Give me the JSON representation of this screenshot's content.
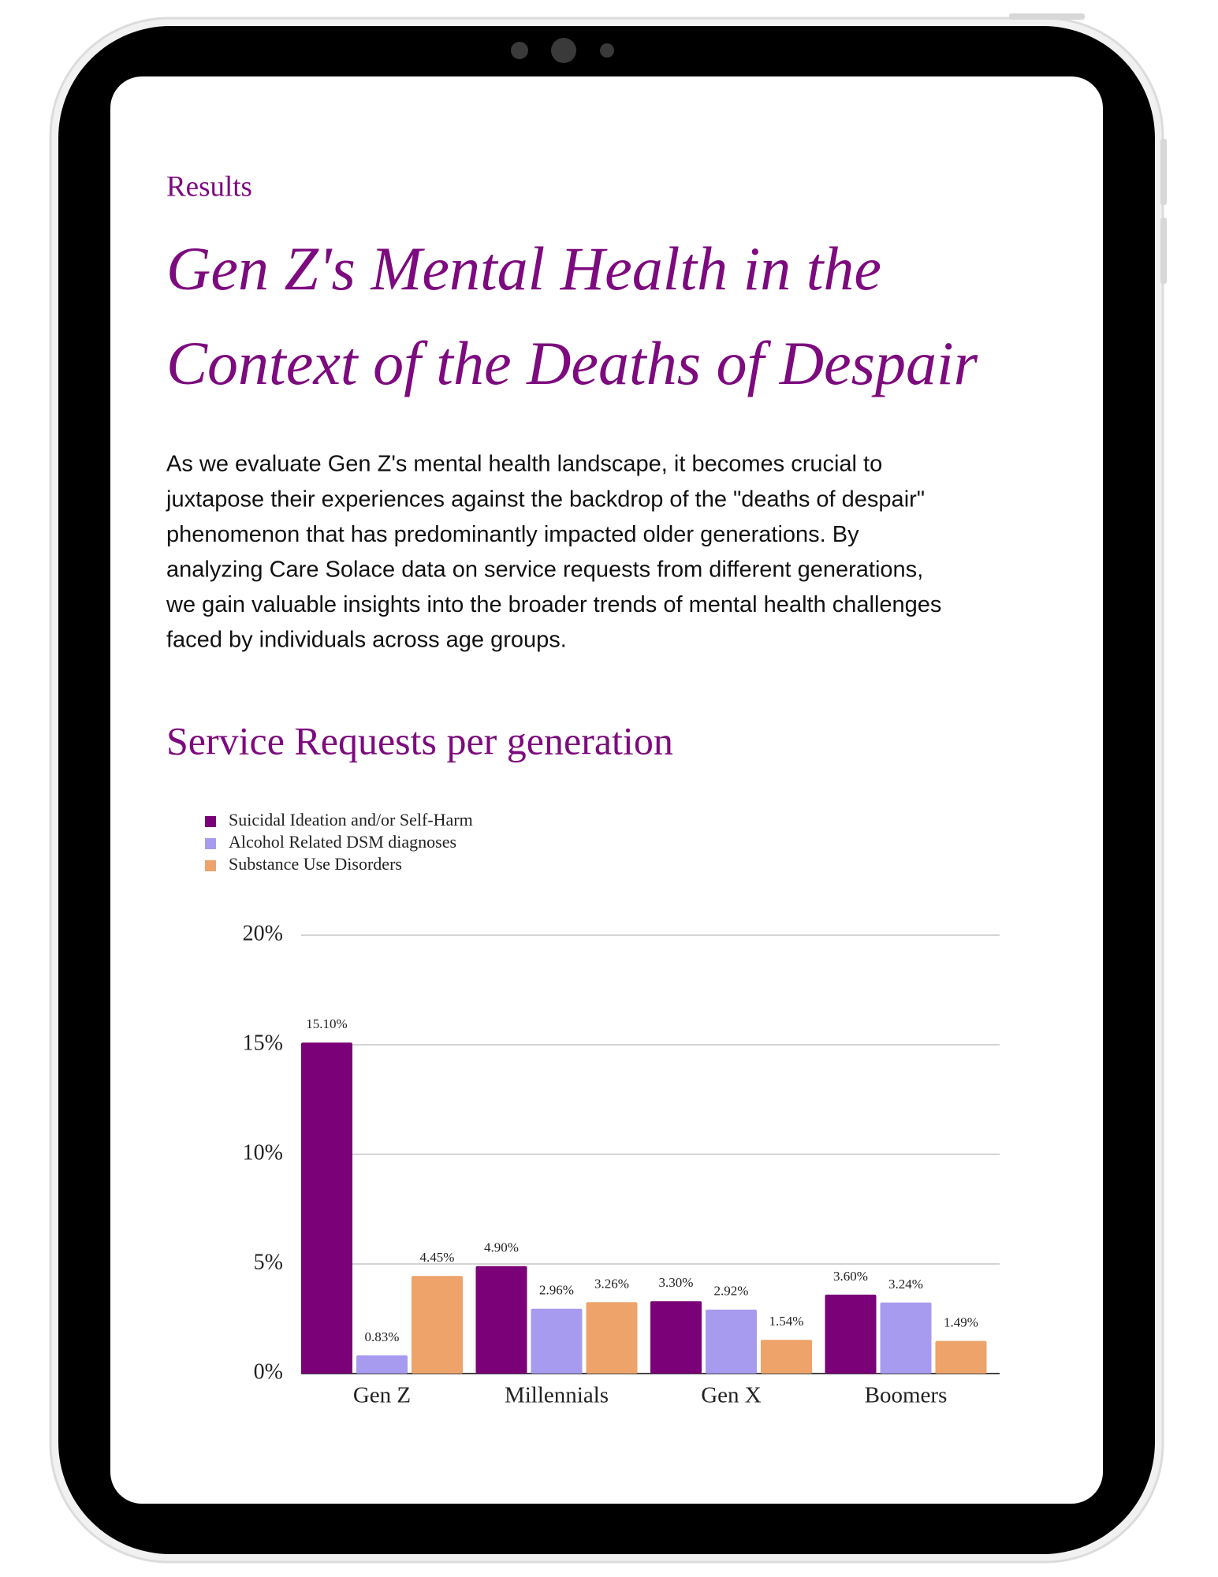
{
  "header": {
    "eyebrow": "Results",
    "title_lines": [
      "Gen Z's Mental Health in the",
      "Context of the Deaths of Despair"
    ]
  },
  "body": {
    "paragraph_lines": [
      "As we evaluate Gen Z's mental health landscape, it becomes crucial to",
      "juxtapose their experiences against the backdrop of the \"deaths of despair\"",
      "phenomenon that has predominantly impacted older generations. By",
      "analyzing Care Solace data on service requests from different generations,",
      "we gain valuable insights into the broader trends of mental health challenges",
      "faced by individuals across age groups."
    ]
  },
  "chart_data": {
    "type": "bar",
    "title": "Service Requests per generation",
    "categories": [
      "Gen Z",
      "Millennials",
      "Gen X",
      "Boomers"
    ],
    "series": [
      {
        "name": "Suicidal Ideation and/or Self-Harm",
        "color": "#7a0177",
        "values": [
          15.1,
          4.9,
          3.3,
          3.6
        ],
        "value_labels": [
          "15.10%",
          "4.90%",
          "3.30%",
          "3.60%"
        ]
      },
      {
        "name": "Alcohol Related DSM diagnoses",
        "color": "#a79bf0",
        "values": [
          0.83,
          2.96,
          2.92,
          3.24
        ],
        "value_labels": [
          "0.83%",
          "2.96%",
          "2.92%",
          "3.24%"
        ]
      },
      {
        "name": "Substance Use Disorders",
        "color": "#eda36a",
        "values": [
          4.45,
          3.26,
          1.54,
          1.49
        ],
        "value_labels": [
          "4.45%",
          "3.26%",
          "1.54%",
          "1.49%"
        ]
      }
    ],
    "ylim": [
      0,
      20
    ],
    "yticks": [
      {
        "value": 0,
        "label": "0%"
      },
      {
        "value": 5,
        "label": "5%"
      },
      {
        "value": 10,
        "label": "10%"
      },
      {
        "value": 15,
        "label": "15%"
      },
      {
        "value": 20,
        "label": "20%"
      }
    ],
    "grid": true,
    "legend": "top-left"
  }
}
